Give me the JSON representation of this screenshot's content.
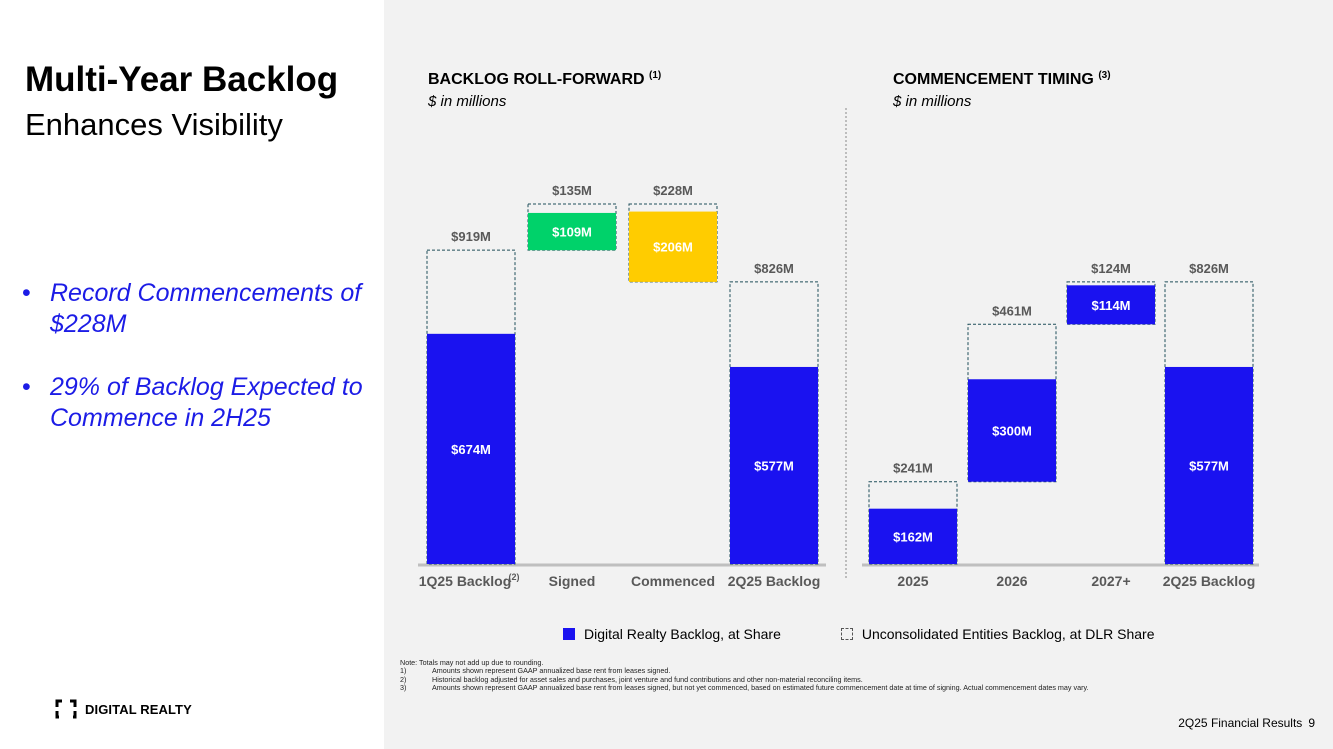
{
  "slide": {
    "title": "Multi-Year Backlog",
    "subtitle": "Enhances Visibility",
    "bullets": [
      "Record Commencements of $228M",
      "29% of Backlog Expected to Commence in 2H25"
    ],
    "logo_text": "DIGITAL REALTY",
    "footer_text": "2Q25 Financial Results",
    "page_number": "9"
  },
  "colors": {
    "dlr_blue": "#1a12f0",
    "signed_green": "#00d26a",
    "commenced_yellow": "#ffcc00",
    "bullet_text": "#1c1ce6",
    "panel_bg": "#f2f2f2"
  },
  "legend": {
    "solid_label": "Digital Realty Backlog, at Share",
    "dashed_label": "Unconsolidated Entities Backlog, at DLR Share"
  },
  "notes": {
    "intro": "Note:  Totals may not add up due to rounding.",
    "items": [
      {
        "num": "1)",
        "text": "Amounts shown represent GAAP annualized base rent from leases signed."
      },
      {
        "num": "2)",
        "text": "Historical backlog adjusted for asset sales and purchases, joint venture and fund contributions and other non-material reconciling items."
      },
      {
        "num": "3)",
        "text": "Amounts shown represent GAAP annualized base rent from leases signed, but not yet commenced, based on estimated future commencement date at time of signing. Actual commencement dates may vary."
      }
    ]
  },
  "chart_data": [
    {
      "type": "bar",
      "subtype": "waterfall",
      "title": "BACKLOG ROLL-FORWARD",
      "title_note": "(1)",
      "subtitle": "$ in millions",
      "categories": [
        "1Q25 Backlog",
        "Signed",
        "Commenced",
        "2Q25 Backlog"
      ],
      "category_notes": [
        "(2)",
        "",
        "",
        ""
      ],
      "ylim": [
        0,
        1000
      ],
      "bars": [
        {
          "category": "1Q25 Backlog",
          "base": 0,
          "dlr_value": 674,
          "total_value": 919,
          "dlr_label": "$674M",
          "total_label": "$919M",
          "color": "#1a12f0"
        },
        {
          "category": "Signed",
          "base": 919,
          "dlr_value": 109,
          "total_value": 135,
          "dlr_label": "$109M",
          "total_label": "$135M",
          "color": "#00d26a",
          "direction": "up"
        },
        {
          "category": "Commenced",
          "base": 1054,
          "dlr_value": 206,
          "total_value": 228,
          "dlr_label": "$206M",
          "total_label": "$228M",
          "color": "#ffcc00",
          "direction": "down"
        },
        {
          "category": "2Q25 Backlog",
          "base": 0,
          "dlr_value": 577,
          "total_value": 826,
          "dlr_label": "$577M",
          "total_label": "$826M",
          "color": "#1a12f0"
        }
      ]
    },
    {
      "type": "bar",
      "subtype": "waterfall",
      "title": "COMMENCEMENT TIMING",
      "title_note": "(3)",
      "subtitle": "$ in millions",
      "categories": [
        "2025",
        "2026",
        "2027+",
        "2Q25 Backlog"
      ],
      "ylim": [
        0,
        1000
      ],
      "bars": [
        {
          "category": "2025",
          "base": 0,
          "dlr_value": 162,
          "total_value": 241,
          "dlr_label": "$162M",
          "total_label": "$241M",
          "color": "#1a12f0"
        },
        {
          "category": "2026",
          "base": 241,
          "dlr_value": 300,
          "total_value": 461,
          "dlr_label": "$300M",
          "total_label": "$461M",
          "color": "#1a12f0"
        },
        {
          "category": "2027+",
          "base": 702,
          "dlr_value": 114,
          "total_value": 124,
          "dlr_label": "$114M",
          "total_label": "$124M",
          "color": "#1a12f0"
        },
        {
          "category": "2Q25 Backlog",
          "base": 0,
          "dlr_value": 577,
          "total_value": 826,
          "dlr_label": "$577M",
          "total_label": "$826M",
          "color": "#1a12f0"
        }
      ]
    }
  ]
}
